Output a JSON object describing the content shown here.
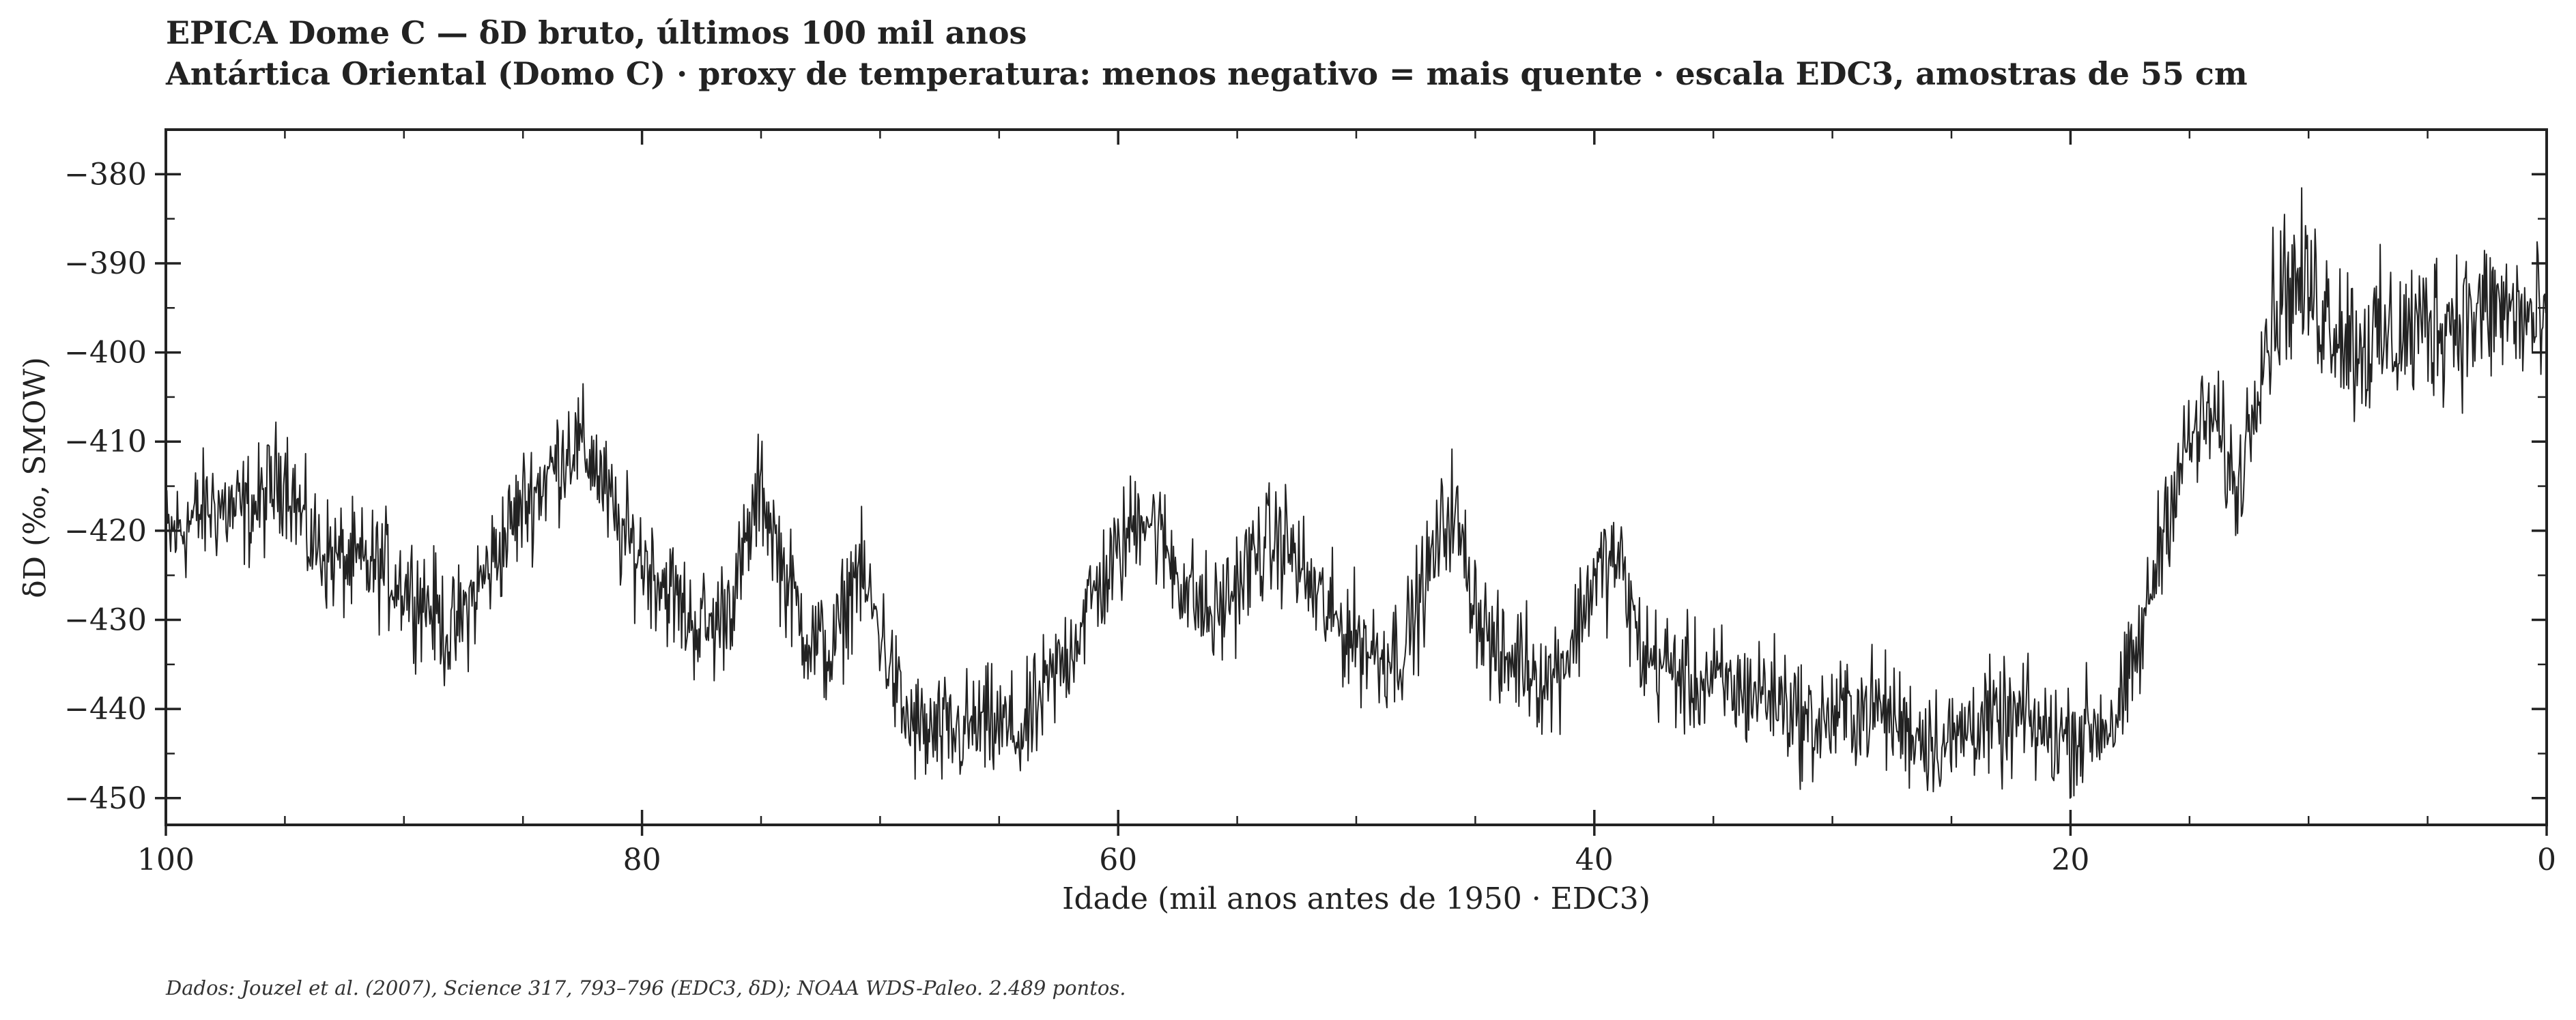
{
  "chart_data": {
    "type": "line",
    "title": "EPICA Dome C — δD bruto, últimos 100 mil anos",
    "subtitle": "Antártica Oriental (Domo C) · proxy de temperatura: menos negativo = mais quente · escala EDC3, amostras de 55 cm",
    "xlabel": "Idade (mil anos antes de 1950 · EDC3)",
    "ylabel": "δD (‰, SMOW)",
    "xlim": [
      100,
      0
    ],
    "ylim": [
      -453,
      -375
    ],
    "x_reversed": true,
    "x_ticks": [
      100,
      80,
      60,
      40,
      20,
      0
    ],
    "y_ticks": [
      -380,
      -390,
      -400,
      -410,
      -420,
      -430,
      -440,
      -450
    ],
    "x_tick_labels": [
      "100",
      "80",
      "60",
      "40",
      "20",
      "0"
    ],
    "y_tick_labels": [
      "−380",
      "−390",
      "−400",
      "−410",
      "−420",
      "−430",
      "−440",
      "−450"
    ],
    "grid": false,
    "series": [
      {
        "color": "#222222",
        "x": [
          100,
          99,
          98,
          97,
          96,
          95,
          94,
          93,
          92,
          91,
          90,
          89,
          88,
          87,
          86,
          85,
          84,
          83,
          82,
          81,
          80,
          79,
          78,
          77,
          76,
          75,
          74,
          73,
          72,
          71,
          70,
          69,
          68,
          67,
          66,
          65,
          64,
          63,
          62,
          61,
          60,
          59,
          58,
          57,
          56,
          55,
          54,
          53,
          52,
          51,
          50,
          49,
          48,
          47,
          46,
          45,
          44,
          43,
          42,
          41,
          40,
          39,
          38,
          37,
          36,
          35,
          34,
          33,
          32,
          31,
          30,
          29,
          28,
          27,
          26,
          25,
          24,
          23,
          22,
          21,
          20,
          19,
          18,
          17,
          16,
          15,
          14,
          13,
          12,
          11,
          10,
          9,
          8,
          7,
          6,
          5,
          4,
          3,
          2,
          1,
          0
        ],
        "y": [
          -421,
          -419,
          -417,
          -418,
          -417,
          -413,
          -421,
          -423,
          -424,
          -424,
          -426,
          -428,
          -432,
          -427,
          -422,
          -417,
          -414,
          -410,
          -412,
          -420,
          -423,
          -426,
          -430,
          -431,
          -426,
          -415,
          -425,
          -432,
          -434,
          -424,
          -431,
          -441,
          -443,
          -443,
          -442,
          -442,
          -443,
          -438,
          -433,
          -427,
          -423,
          -417,
          -422,
          -427,
          -430,
          -426,
          -422,
          -421,
          -426,
          -430,
          -432,
          -434,
          -433,
          -425,
          -417,
          -428,
          -435,
          -434,
          -437,
          -433,
          -425,
          -423,
          -434,
          -435,
          -437,
          -437,
          -438,
          -438,
          -439,
          -442,
          -441,
          -440,
          -440,
          -442,
          -443,
          -444,
          -441,
          -442,
          -441,
          -443,
          -443,
          -442,
          -441,
          -432,
          -418,
          -410,
          -407,
          -416,
          -400,
          -392,
          -393,
          -396,
          -399,
          -399,
          -398,
          -397,
          -396,
          -396,
          -395,
          -396,
          -398
        ]
      }
    ],
    "annotations": [
      "Dados: Jouzel et al. (2007), Science 317, 793–796 (EDC3, δD); NOAA WDS-Paleo. 2.489 pontos."
    ]
  }
}
